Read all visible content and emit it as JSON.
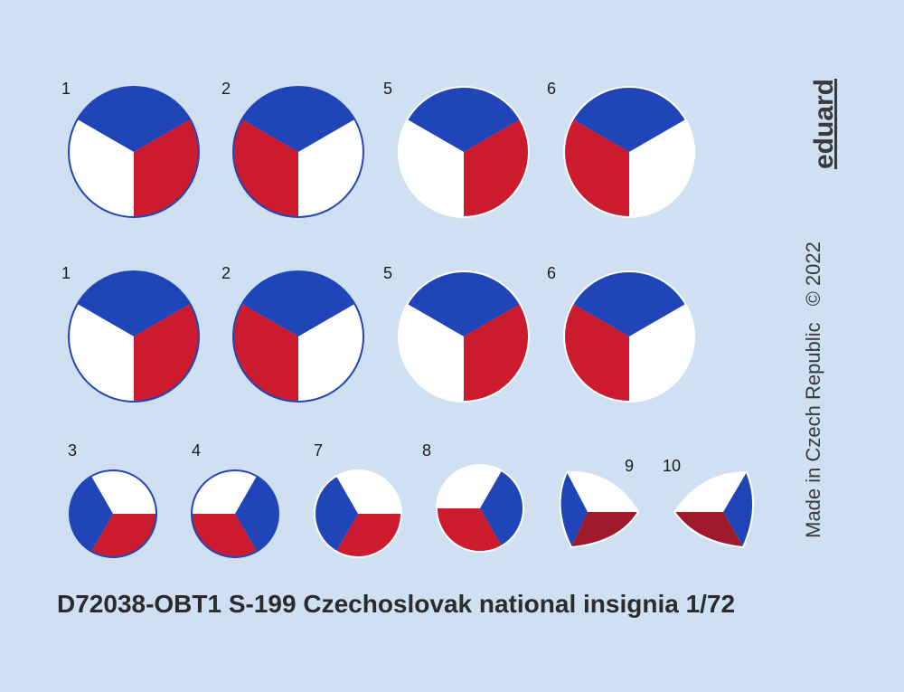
{
  "colors": {
    "background": "#cfe0f2",
    "blue": "#1f45b8",
    "red": "#cc1a2e",
    "dark_red": "#9e1a2a",
    "white": "#ffffff",
    "outline_blue": "#1f45b8",
    "outline_white": "#ffffff"
  },
  "labels": {
    "r1a": "1",
    "r2a": "2",
    "r5a": "5",
    "r6a": "6",
    "r1b": "1",
    "r2b": "2",
    "r5b": "5",
    "r6b": "6",
    "r3": "3",
    "r4": "4",
    "r7": "7",
    "r8": "8",
    "r9": "9",
    "r10": "10"
  },
  "brand": "eduard",
  "made_in": "Made in Czech Republic",
  "copyright": "© 2022",
  "title": "D72038-OBT1 S-199 Czechoslovak national insignia 1/72"
}
